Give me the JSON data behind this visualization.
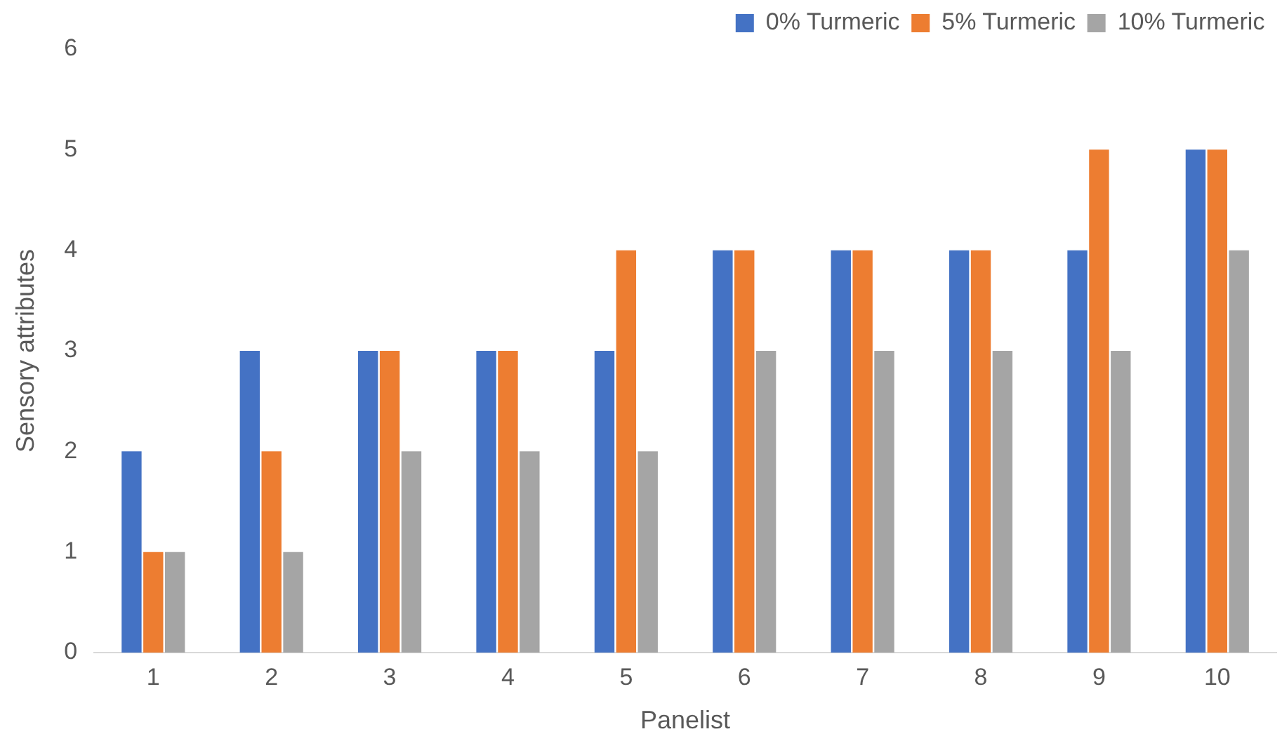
{
  "chart_data": {
    "type": "bar",
    "xlabel": "Panelist",
    "ylabel": "Sensory attributes",
    "categories": [
      "1",
      "2",
      "3",
      "4",
      "5",
      "6",
      "7",
      "8",
      "9",
      "10"
    ],
    "series": [
      {
        "name": "0% Turmeric",
        "color": "#4472c4",
        "values": [
          2,
          3,
          3,
          3,
          3,
          4,
          4,
          4,
          4,
          5
        ]
      },
      {
        "name": "5% Turmeric",
        "color": "#ed7d31",
        "values": [
          1,
          2,
          3,
          3,
          4,
          4,
          4,
          4,
          5,
          5
        ]
      },
      {
        "name": "10% Turmeric",
        "color": "#a5a5a5",
        "values": [
          1,
          1,
          2,
          2,
          2,
          3,
          3,
          3,
          3,
          4
        ]
      }
    ],
    "ylim": [
      0,
      6
    ],
    "yticks": [
      0,
      1,
      2,
      3,
      4,
      5,
      6
    ],
    "grid": false,
    "legend": "top right"
  }
}
